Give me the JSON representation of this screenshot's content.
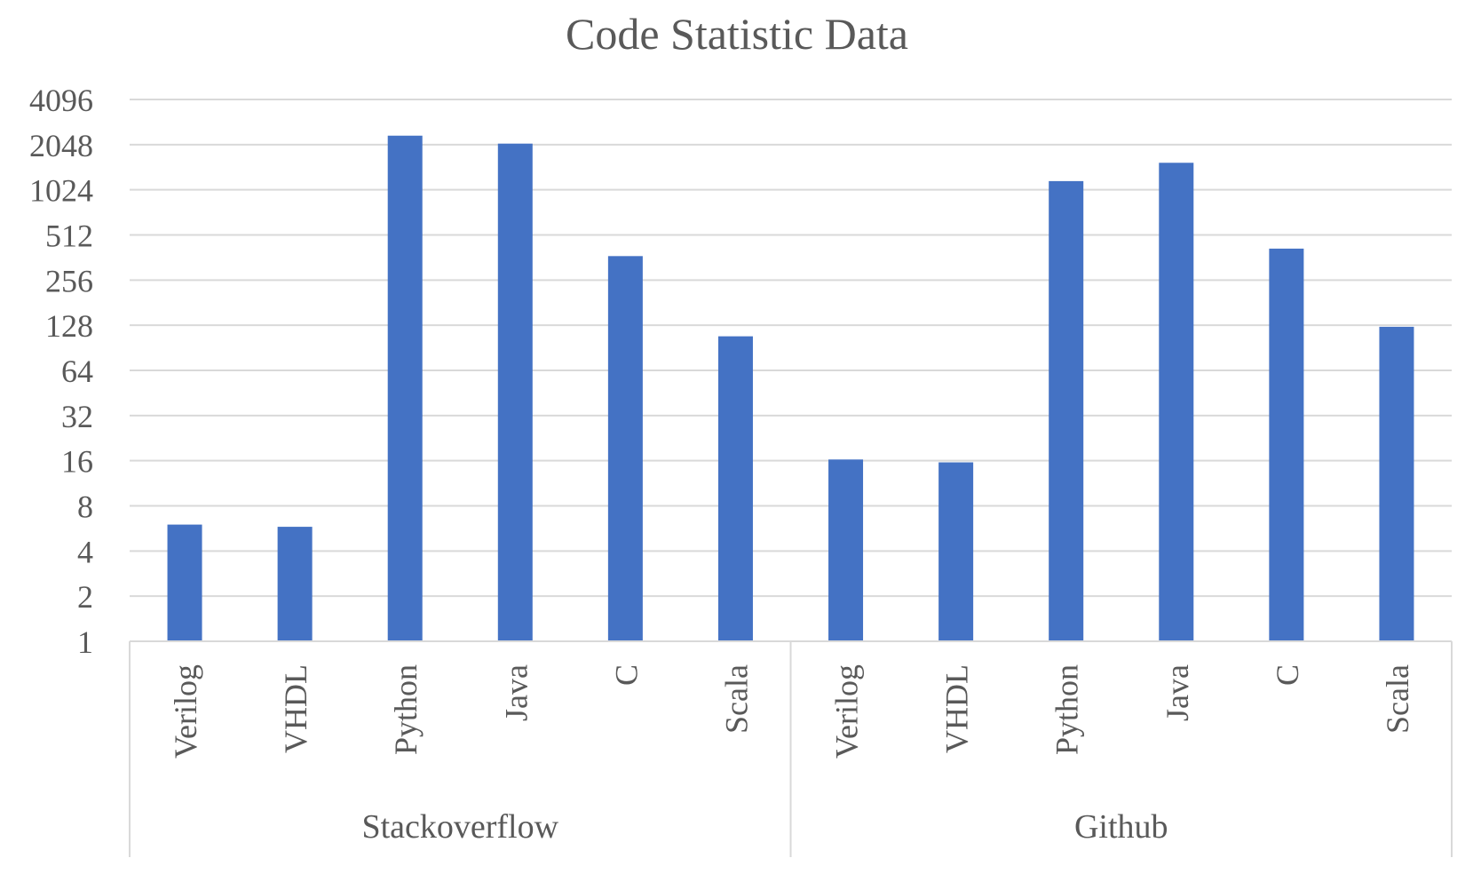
{
  "chart_data": {
    "type": "bar",
    "title": "Code Statistic Data",
    "xlabel": "",
    "ylabel": "",
    "yscale": "log2",
    "ylim": [
      1,
      4096
    ],
    "yticks": [
      "1",
      "2",
      "4",
      "8",
      "16",
      "32",
      "64",
      "128",
      "256",
      "512",
      "1024",
      "2048",
      "4096"
    ],
    "grid": true,
    "bar_color": "#4472c4",
    "groups": [
      {
        "name": "Stackoverflow",
        "categories": [
          "Verilog",
          "VHDL",
          "Python",
          "Java",
          "C",
          "Scala"
        ],
        "values": [
          6,
          5.8,
          2350,
          2080,
          370,
          108
        ]
      },
      {
        "name": "Github",
        "categories": [
          "Verilog",
          "VHDL",
          "Python",
          "Java",
          "C",
          "Scala"
        ],
        "values": [
          16.3,
          15.6,
          1170,
          1550,
          415,
          125
        ]
      }
    ]
  }
}
